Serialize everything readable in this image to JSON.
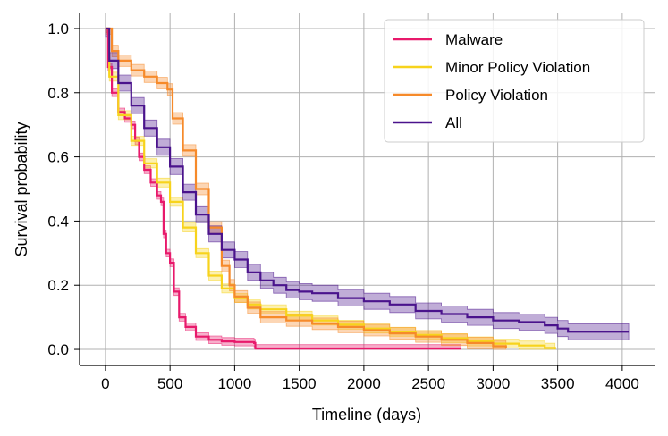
{
  "chart_data": {
    "type": "line",
    "title": "",
    "xlabel": "Timeline (days)",
    "ylabel": "Survival probability",
    "xlim": [
      -200,
      4250
    ],
    "ylim": [
      -0.05,
      1.05
    ],
    "xticks": [
      0,
      500,
      1000,
      1500,
      2000,
      2500,
      3000,
      3500,
      4000
    ],
    "yticks": [
      0.0,
      0.2,
      0.4,
      0.6,
      0.8,
      1.0
    ],
    "xtick_labels": [
      "0",
      "500",
      "1000",
      "1500",
      "2000",
      "2500",
      "3000",
      "3500",
      "4000"
    ],
    "ytick_labels": [
      "0.0",
      "0.2",
      "0.4",
      "0.6",
      "0.8",
      "1.0"
    ],
    "grid": true,
    "legend_position": "top-right",
    "series": [
      {
        "name": "Malware",
        "color": "#e8196b",
        "points": [
          [
            0,
            1.0
          ],
          [
            20,
            0.88
          ],
          [
            50,
            0.8
          ],
          [
            100,
            0.74
          ],
          [
            150,
            0.72
          ],
          [
            200,
            0.7
          ],
          [
            230,
            0.65
          ],
          [
            260,
            0.6
          ],
          [
            300,
            0.56
          ],
          [
            350,
            0.52
          ],
          [
            400,
            0.48
          ],
          [
            430,
            0.46
          ],
          [
            450,
            0.36
          ],
          [
            470,
            0.3
          ],
          [
            500,
            0.27
          ],
          [
            530,
            0.18
          ],
          [
            570,
            0.1
          ],
          [
            620,
            0.07
          ],
          [
            700,
            0.04
          ],
          [
            800,
            0.03
          ],
          [
            900,
            0.025
          ],
          [
            1000,
            0.023
          ],
          [
            1150,
            0.02
          ],
          [
            1160,
            0.003
          ],
          [
            2750,
            0.003
          ]
        ],
        "ci": 0.012
      },
      {
        "name": "Minor Policy Violation",
        "color": "#f7d31c",
        "points": [
          [
            0,
            1.0
          ],
          [
            30,
            0.85
          ],
          [
            100,
            0.73
          ],
          [
            200,
            0.65
          ],
          [
            300,
            0.58
          ],
          [
            400,
            0.52
          ],
          [
            500,
            0.46
          ],
          [
            600,
            0.38
          ],
          [
            700,
            0.3
          ],
          [
            800,
            0.23
          ],
          [
            900,
            0.19
          ],
          [
            1000,
            0.16
          ],
          [
            1100,
            0.14
          ],
          [
            1200,
            0.125
          ],
          [
            1400,
            0.105
          ],
          [
            1600,
            0.09
          ],
          [
            1800,
            0.077
          ],
          [
            2000,
            0.065
          ],
          [
            2200,
            0.055
          ],
          [
            2400,
            0.045
          ],
          [
            2600,
            0.035
          ],
          [
            2800,
            0.025
          ],
          [
            3000,
            0.018
          ],
          [
            3200,
            0.012
          ],
          [
            3400,
            0.005
          ],
          [
            3480,
            0.0
          ]
        ],
        "ci": 0.014
      },
      {
        "name": "Policy Violation",
        "color": "#f68a2a",
        "points": [
          [
            0,
            1.0
          ],
          [
            50,
            0.93
          ],
          [
            100,
            0.9
          ],
          [
            200,
            0.87
          ],
          [
            300,
            0.85
          ],
          [
            400,
            0.83
          ],
          [
            480,
            0.81
          ],
          [
            520,
            0.72
          ],
          [
            600,
            0.62
          ],
          [
            700,
            0.5
          ],
          [
            800,
            0.38
          ],
          [
            900,
            0.26
          ],
          [
            960,
            0.2
          ],
          [
            1000,
            0.165
          ],
          [
            1100,
            0.13
          ],
          [
            1200,
            0.1
          ],
          [
            1400,
            0.09
          ],
          [
            1600,
            0.08
          ],
          [
            1800,
            0.07
          ],
          [
            2000,
            0.06
          ],
          [
            2200,
            0.05
          ],
          [
            2400,
            0.04
          ],
          [
            2600,
            0.03
          ],
          [
            2800,
            0.02
          ],
          [
            3000,
            0.01
          ],
          [
            3100,
            0.003
          ]
        ],
        "ci": 0.018
      },
      {
        "name": "All",
        "color": "#4a138c",
        "points": [
          [
            0,
            1.0
          ],
          [
            30,
            0.9
          ],
          [
            100,
            0.83
          ],
          [
            200,
            0.76
          ],
          [
            300,
            0.69
          ],
          [
            400,
            0.63
          ],
          [
            500,
            0.57
          ],
          [
            600,
            0.49
          ],
          [
            700,
            0.42
          ],
          [
            800,
            0.36
          ],
          [
            900,
            0.31
          ],
          [
            1000,
            0.28
          ],
          [
            1100,
            0.24
          ],
          [
            1200,
            0.215
          ],
          [
            1300,
            0.2
          ],
          [
            1400,
            0.185
          ],
          [
            1500,
            0.18
          ],
          [
            1600,
            0.175
          ],
          [
            1800,
            0.16
          ],
          [
            2000,
            0.15
          ],
          [
            2200,
            0.14
          ],
          [
            2400,
            0.12
          ],
          [
            2600,
            0.11
          ],
          [
            2800,
            0.1
          ],
          [
            3000,
            0.09
          ],
          [
            3200,
            0.085
          ],
          [
            3400,
            0.075
          ],
          [
            3500,
            0.065
          ],
          [
            3580,
            0.055
          ],
          [
            4050,
            0.055
          ]
        ],
        "ci": 0.025
      }
    ]
  }
}
